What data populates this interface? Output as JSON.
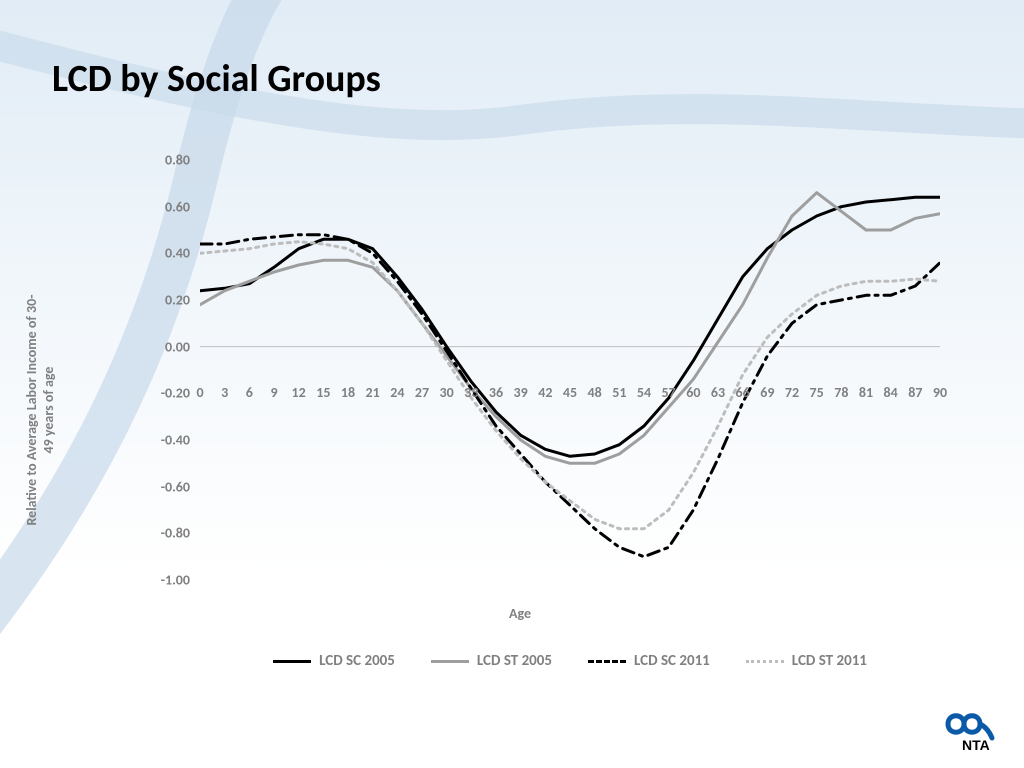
{
  "title": "LCD by Social Groups",
  "title_fontsize": 38,
  "background_gradient": [
    "#e1ecf6",
    "#f2f7fb",
    "#ffffff"
  ],
  "swirl_color": "#c7d9ea",
  "chart": {
    "type": "line",
    "ylabel": "Relative to Average Labor Income of 30-\n49 years of age",
    "xlabel": "Age",
    "label_fontsize": 14,
    "label_color": "#808080",
    "label_fontweight": 700,
    "tick_fontsize": 14,
    "tick_color": "#808080",
    "tick_fontweight": 700,
    "ylim": [
      -1.0,
      0.8
    ],
    "ytick_step": 0.2,
    "yticks": [
      "0.80",
      "0.60",
      "0.40",
      "0.20",
      "0.00",
      "-0.20",
      "-0.40",
      "-0.60",
      "-0.80",
      "-1.00"
    ],
    "xlim": [
      0,
      90
    ],
    "xtick_step": 3,
    "xticks": [
      0,
      3,
      6,
      9,
      12,
      15,
      18,
      21,
      24,
      27,
      30,
      33,
      36,
      39,
      42,
      45,
      48,
      51,
      54,
      57,
      60,
      63,
      66,
      69,
      72,
      75,
      78,
      81,
      84,
      87,
      90
    ],
    "xtick_y_at_value": -0.2,
    "zero_line_color": "#bfbfbf",
    "zero_line_width": 1,
    "grid": false,
    "line_width": 3,
    "series": [
      {
        "name": "LCD SC 2005",
        "color": "#000000",
        "dash": "solid",
        "x": [
          0,
          3,
          6,
          9,
          12,
          15,
          18,
          21,
          24,
          27,
          30,
          33,
          36,
          39,
          42,
          45,
          48,
          51,
          54,
          57,
          60,
          63,
          66,
          69,
          72,
          75,
          78,
          81,
          84,
          87,
          90
        ],
        "y": [
          0.24,
          0.25,
          0.27,
          0.34,
          0.42,
          0.46,
          0.46,
          0.42,
          0.3,
          0.16,
          0.0,
          -0.15,
          -0.28,
          -0.38,
          -0.44,
          -0.47,
          -0.46,
          -0.42,
          -0.34,
          -0.22,
          -0.06,
          0.12,
          0.3,
          0.42,
          0.5,
          0.56,
          0.6,
          0.62,
          0.63,
          0.64,
          0.64
        ]
      },
      {
        "name": "LCD ST 2005",
        "color": "#9e9e9e",
        "dash": "solid",
        "x": [
          0,
          3,
          6,
          9,
          12,
          15,
          18,
          21,
          24,
          27,
          30,
          33,
          36,
          39,
          42,
          45,
          48,
          51,
          54,
          57,
          60,
          63,
          66,
          69,
          72,
          75,
          78,
          81,
          84,
          87,
          90
        ],
        "y": [
          0.18,
          0.24,
          0.28,
          0.32,
          0.35,
          0.37,
          0.37,
          0.34,
          0.24,
          0.1,
          -0.04,
          -0.18,
          -0.3,
          -0.4,
          -0.47,
          -0.5,
          -0.5,
          -0.46,
          -0.38,
          -0.26,
          -0.14,
          0.02,
          0.18,
          0.38,
          0.56,
          0.66,
          0.58,
          0.5,
          0.5,
          0.55,
          0.57
        ]
      },
      {
        "name": "LCD SC 2011",
        "color": "#000000",
        "dash": "dash-dot",
        "x": [
          0,
          3,
          6,
          9,
          12,
          15,
          18,
          21,
          24,
          27,
          30,
          33,
          36,
          39,
          42,
          45,
          48,
          51,
          54,
          57,
          60,
          63,
          66,
          69,
          72,
          75,
          78,
          81,
          84,
          87,
          90
        ],
        "y": [
          0.44,
          0.44,
          0.46,
          0.47,
          0.48,
          0.48,
          0.46,
          0.4,
          0.28,
          0.14,
          -0.02,
          -0.18,
          -0.34,
          -0.46,
          -0.58,
          -0.68,
          -0.78,
          -0.86,
          -0.9,
          -0.86,
          -0.7,
          -0.48,
          -0.24,
          -0.04,
          0.1,
          0.18,
          0.2,
          0.22,
          0.22,
          0.26,
          0.36
        ]
      },
      {
        "name": "LCD ST 2011",
        "color": "#bdbdbd",
        "dash": "dot",
        "x": [
          0,
          3,
          6,
          9,
          12,
          15,
          18,
          21,
          24,
          27,
          30,
          33,
          36,
          39,
          42,
          45,
          48,
          51,
          54,
          57,
          60,
          63,
          66,
          69,
          72,
          75,
          78,
          81,
          84,
          87,
          90
        ],
        "y": [
          0.4,
          0.41,
          0.42,
          0.44,
          0.45,
          0.44,
          0.42,
          0.36,
          0.24,
          0.1,
          -0.06,
          -0.22,
          -0.36,
          -0.48,
          -0.58,
          -0.66,
          -0.74,
          -0.78,
          -0.78,
          -0.7,
          -0.54,
          -0.34,
          -0.12,
          0.04,
          0.14,
          0.22,
          0.26,
          0.28,
          0.28,
          0.29,
          0.28
        ]
      }
    ],
    "legend_position": "bottom",
    "legend_fontsize": 15,
    "legend_color": "#808080"
  },
  "logo": {
    "text": "NTA",
    "color_symbol": "#0b5aa8",
    "color_text": "#000000"
  }
}
